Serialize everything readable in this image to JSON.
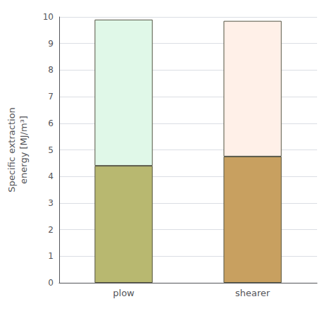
{
  "chart_data": {
    "type": "bar",
    "stacked": true,
    "ylabel": "Specific extraction\nenergy [MJ/m³]",
    "categories": [
      "plow",
      "shearer"
    ],
    "series": [
      {
        "values": [
          4.4,
          4.75
        ],
        "colors": [
          "#B8B870",
          "#C8A060"
        ]
      },
      {
        "values": [
          5.5,
          5.1
        ],
        "colors": [
          "#E0F8E8",
          "#FFF0E8"
        ]
      }
    ],
    "ylim": [
      0,
      10
    ],
    "yticks": [
      0,
      1,
      2,
      3,
      4,
      5,
      6,
      7,
      8,
      9,
      10
    ],
    "grid": true
  }
}
